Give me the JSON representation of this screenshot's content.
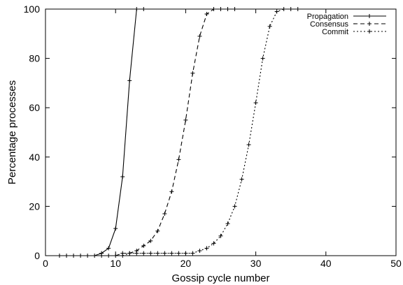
{
  "chart_data": {
    "type": "line",
    "title": "",
    "xlabel": "Gossip cycle number",
    "ylabel": "Percentage processes",
    "xlim": [
      0,
      50
    ],
    "ylim": [
      0,
      100
    ],
    "xticks": [
      0,
      10,
      20,
      30,
      40,
      50
    ],
    "yticks": [
      0,
      20,
      40,
      60,
      80,
      100
    ],
    "grid": false,
    "legend_position": "top-right",
    "series": [
      {
        "name": "Propagation",
        "line_style": "solid",
        "marker": "plus",
        "x": [
          2,
          3,
          4,
          5,
          6,
          7,
          8,
          9,
          10,
          11,
          12,
          13,
          14
        ],
        "y": [
          0,
          0,
          0,
          0,
          0,
          0,
          1,
          3,
          11,
          32,
          71,
          100,
          100
        ]
      },
      {
        "name": "Consensus",
        "line_style": "dashed",
        "marker": "plus",
        "x": [
          8,
          9,
          10,
          11,
          12,
          13,
          14,
          15,
          16,
          17,
          18,
          19,
          20,
          21,
          22,
          23,
          24,
          25,
          26,
          27
        ],
        "y": [
          0,
          0,
          0,
          1,
          1,
          2,
          4,
          6,
          10,
          17,
          26,
          39,
          55,
          74,
          89,
          98,
          100,
          100,
          100,
          100
        ]
      },
      {
        "name": "Commit",
        "line_style": "dotted",
        "marker": "plus",
        "x": [
          11,
          12,
          13,
          14,
          15,
          16,
          17,
          18,
          19,
          20,
          21,
          22,
          23,
          24,
          25,
          26,
          27,
          28,
          29,
          30,
          31,
          32,
          33,
          34,
          35,
          36
        ],
        "y": [
          0,
          1,
          1,
          1,
          1,
          1,
          1,
          1,
          1,
          1,
          1,
          2,
          3,
          5,
          8,
          13,
          20,
          31,
          45,
          62,
          80,
          93,
          99,
          100,
          100,
          100
        ]
      }
    ]
  }
}
